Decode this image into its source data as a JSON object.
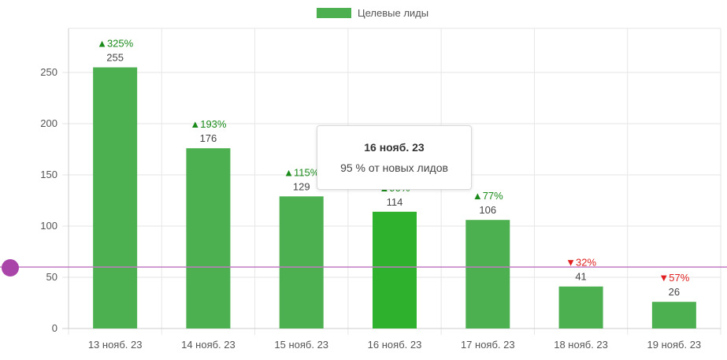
{
  "chart_data": {
    "type": "bar",
    "categories": [
      "13 нояб. 23",
      "14 нояб. 23",
      "15 нояб. 23",
      "16 нояб. 23",
      "17 нояб. 23",
      "18 нояб. 23",
      "19 нояб. 23"
    ],
    "series": [
      {
        "name": "Целевые лиды",
        "values": [
          255,
          176,
          129,
          114,
          106,
          41,
          26
        ]
      }
    ],
    "deltas": [
      {
        "dir": "up",
        "text": "▲325%"
      },
      {
        "dir": "up",
        "text": "▲193%"
      },
      {
        "dir": "up",
        "text": "▲115%"
      },
      {
        "dir": "up",
        "text": "▲90%"
      },
      {
        "dir": "up",
        "text": "▲77%"
      },
      {
        "dir": "down",
        "text": "▼32%"
      },
      {
        "dir": "down",
        "text": "▼57%"
      }
    ],
    "highlighted_index": 3,
    "ylim": [
      0,
      290
    ],
    "yticks": [
      0,
      50,
      100,
      150,
      200,
      250
    ],
    "grid": true,
    "legend_position": "top-center",
    "target_line_value": 60,
    "xlabel": "",
    "ylabel": ""
  },
  "legend": {
    "label": "Целевые лиды"
  },
  "tooltip": {
    "title": "16 нояб. 23",
    "body": "95 % от новых лидов"
  },
  "colors": {
    "bar": "#4caf50",
    "bar_highlight": "#2eb22e",
    "grid": "#e6e6e6",
    "axis": "#cccccc",
    "target_line": "#c27bc2",
    "target_handle": "#a944a9",
    "delta_up": "#1a8a1a",
    "delta_down": "#e02020"
  }
}
